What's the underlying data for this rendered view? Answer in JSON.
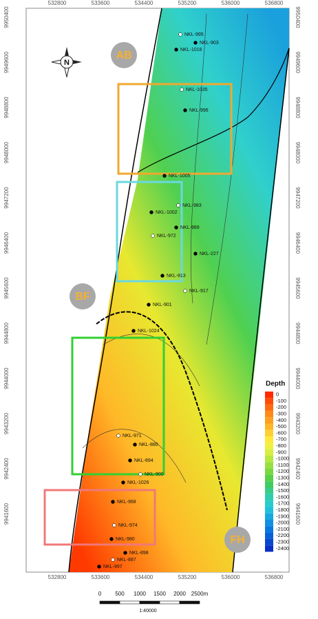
{
  "map": {
    "x_labels": [
      "532800",
      "533600",
      "534400",
      "535200",
      "536000",
      "536800"
    ],
    "y_labels": [
      "9950400",
      "9949600",
      "9948800",
      "9948000",
      "9947200",
      "9946400",
      "9945600",
      "9944800",
      "9944000",
      "9943200",
      "9942400",
      "9941600"
    ],
    "north": "N",
    "regions": [
      "AB",
      "BF",
      "FH"
    ],
    "wells": [
      "NKL-995",
      "NKL-1016",
      "NKL-903",
      "NKL-1035",
      "NKL-996",
      "NKL-1005",
      "NKL-983",
      "NKL-1002",
      "NKL-989",
      "NKL-972",
      "NKL-227",
      "NKL-913",
      "NKL-917",
      "NKL-901",
      "NKL-1024",
      "NKL-971",
      "NKL-880",
      "NKL-894",
      "NKL-900",
      "NKL-1026",
      "NKL-968",
      "NKL-974",
      "NKL-980",
      "NKL-898",
      "NKL-887",
      "NKL-997"
    ],
    "legend": {
      "title": "Depth",
      "labels": [
        0,
        -100,
        -200,
        -300,
        -400,
        -500,
        -600,
        -700,
        -800,
        -900,
        -1000,
        -1100,
        -1200,
        -1300,
        -1400,
        -1500,
        -1600,
        -1700,
        -1800,
        -1900,
        -2000,
        -2100,
        -2200,
        -2300,
        -2400
      ],
      "colors": [
        "#ff2a00",
        "#ff4a08",
        "#ff6a10",
        "#ff8a18",
        "#ffa020",
        "#ffb828",
        "#ffd030",
        "#ffe838",
        "#f0f040",
        "#d8ee40",
        "#b8e840",
        "#98e040",
        "#78d840",
        "#58d048",
        "#40cc60",
        "#38cc88",
        "#30ccb0",
        "#28cccc",
        "#20c0dd",
        "#18a8e0",
        "#1090e0",
        "#0878e0",
        "#0860d8",
        "#0848d0",
        "#0830c8"
      ]
    },
    "scale_bar": {
      "labels": [
        "0",
        "500",
        "1000",
        "1500",
        "2000",
        "2500m"
      ],
      "ratio": "1:40000"
    }
  }
}
